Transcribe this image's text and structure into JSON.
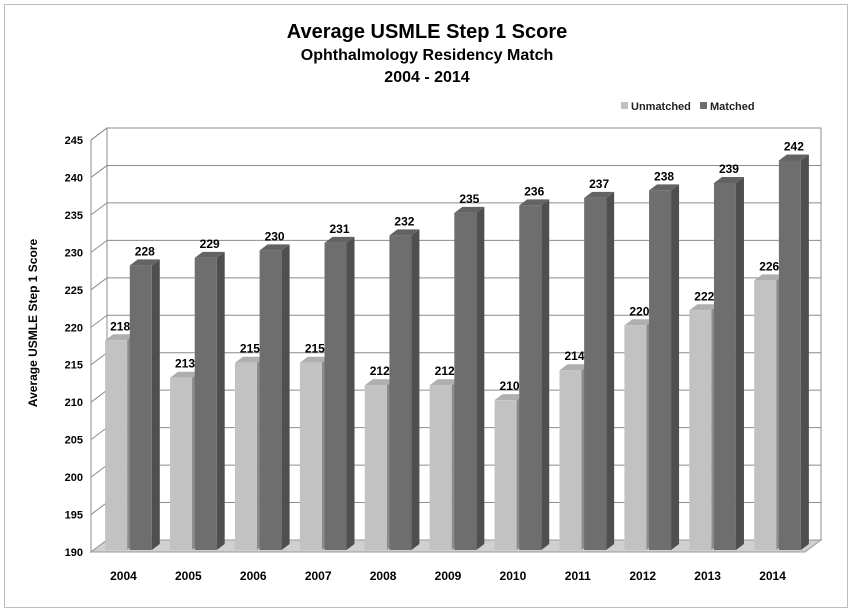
{
  "chart_data": {
    "type": "bar",
    "title": "Average USMLE Step 1 Score",
    "subtitle": "Ophthalmology Residency Match",
    "subtitle2": "2004 - 2014",
    "xlabel": "",
    "ylabel": "Average USMLE Step 1 Score",
    "ylim": [
      190,
      245
    ],
    "yticks": [
      190,
      195,
      200,
      205,
      210,
      215,
      220,
      225,
      230,
      235,
      240,
      245
    ],
    "categories": [
      "2004",
      "2005",
      "2006",
      "2007",
      "2008",
      "2009",
      "2010",
      "2011",
      "2012",
      "2013",
      "2014"
    ],
    "series": [
      {
        "name": "Unmatched",
        "color": "#c2c2c2",
        "values": [
          218,
          213,
          215,
          215,
          212,
          212,
          210,
          214,
          220,
          222,
          226
        ]
      },
      {
        "name": "Matched",
        "color": "#6e6e6e",
        "values": [
          228,
          229,
          230,
          231,
          232,
          235,
          236,
          237,
          238,
          239,
          242
        ]
      }
    ],
    "grid": true,
    "legend_position": "top-right",
    "style": "3d-clustered-column"
  }
}
